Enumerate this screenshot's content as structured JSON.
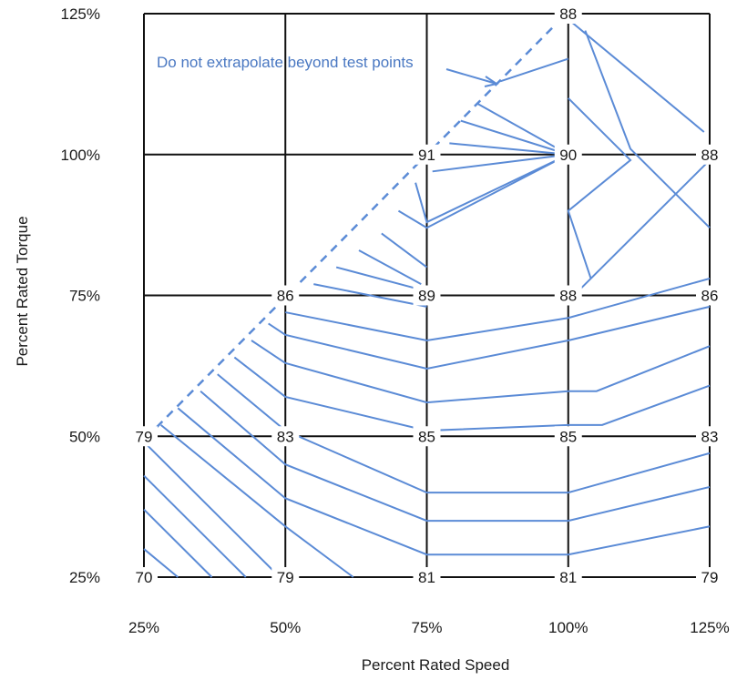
{
  "chart_data": {
    "type": "heatmap",
    "title": "",
    "xlabel": "Percent Rated Speed",
    "ylabel": "Percent Rated Torque",
    "x_ticks": [
      "25%",
      "50%",
      "75%",
      "100%",
      "125%"
    ],
    "y_ticks": [
      "125%",
      "100%",
      "75%",
      "50%",
      "25%"
    ],
    "x_values": [
      25,
      50,
      75,
      100,
      125
    ],
    "y_values": [
      25,
      50,
      75,
      100,
      125
    ],
    "xlim": [
      25,
      125
    ],
    "ylim": [
      25,
      125
    ],
    "grid": true,
    "points": [
      {
        "speed": 25,
        "torque": 25,
        "label": "70"
      },
      {
        "speed": 50,
        "torque": 25,
        "label": "79"
      },
      {
        "speed": 75,
        "torque": 25,
        "label": "81"
      },
      {
        "speed": 100,
        "torque": 25,
        "label": "81"
      },
      {
        "speed": 125,
        "torque": 25,
        "label": "79"
      },
      {
        "speed": 25,
        "torque": 50,
        "label": "79"
      },
      {
        "speed": 50,
        "torque": 50,
        "label": "83"
      },
      {
        "speed": 75,
        "torque": 50,
        "label": "85"
      },
      {
        "speed": 100,
        "torque": 50,
        "label": "85"
      },
      {
        "speed": 125,
        "torque": 50,
        "label": "83"
      },
      {
        "speed": 50,
        "torque": 75,
        "label": "86"
      },
      {
        "speed": 75,
        "torque": 75,
        "label": "89"
      },
      {
        "speed": 100,
        "torque": 75,
        "label": "88"
      },
      {
        "speed": 125,
        "torque": 75,
        "label": "86"
      },
      {
        "speed": 75,
        "torque": 100,
        "label": "91"
      },
      {
        "speed": 100,
        "torque": 100,
        "label": "90"
      },
      {
        "speed": 125,
        "torque": 100,
        "label": "88"
      },
      {
        "speed": 100,
        "torque": 125,
        "label": "88"
      }
    ],
    "boundary": [
      [
        25,
        50
      ],
      [
        100,
        125
      ]
    ],
    "contours": [
      [
        [
          25,
          30
        ],
        [
          31,
          25
        ]
      ],
      [
        [
          25,
          37
        ],
        [
          37,
          25
        ]
      ],
      [
        [
          25,
          43
        ],
        [
          43,
          25
        ]
      ],
      [
        [
          25,
          49
        ],
        [
          49,
          25
        ]
      ],
      [
        [
          28,
          52
        ],
        [
          50,
          34
        ],
        [
          62,
          25
        ]
      ],
      [
        [
          31,
          55
        ],
        [
          50,
          39
        ],
        [
          75,
          29
        ],
        [
          100,
          29
        ],
        [
          125,
          34
        ]
      ],
      [
        [
          35,
          58
        ],
        [
          50,
          45
        ],
        [
          75,
          35
        ],
        [
          100,
          35
        ],
        [
          125,
          41
        ]
      ],
      [
        [
          38,
          61
        ],
        [
          50,
          51
        ],
        [
          75,
          40
        ],
        [
          100,
          40
        ],
        [
          125,
          47
        ]
      ],
      [
        [
          41,
          64
        ],
        [
          50,
          57
        ],
        [
          75,
          51
        ],
        [
          100,
          52
        ],
        [
          106,
          52
        ],
        [
          125,
          59
        ]
      ],
      [
        [
          44,
          67
        ],
        [
          50,
          63
        ],
        [
          75,
          56
        ],
        [
          100,
          58
        ],
        [
          105,
          58
        ],
        [
          125,
          66
        ]
      ],
      [
        [
          47,
          70
        ],
        [
          50,
          68
        ],
        [
          75,
          62
        ],
        [
          100,
          67
        ],
        [
          125,
          73
        ]
      ],
      [
        [
          50,
          72
        ],
        [
          75,
          67
        ],
        [
          100,
          71
        ],
        [
          125,
          78
        ]
      ],
      [
        [
          55,
          77
        ],
        [
          75,
          73
        ]
      ],
      [
        [
          59,
          80
        ],
        [
          74,
          76
        ]
      ],
      [
        [
          63,
          83
        ],
        [
          74,
          77
        ]
      ],
      [
        [
          67,
          86
        ],
        [
          75,
          80
        ]
      ],
      [
        [
          70,
          90
        ],
        [
          75,
          87
        ],
        [
          100,
          100
        ]
      ],
      [
        [
          73,
          95
        ],
        [
          75,
          88
        ],
        [
          100,
          100
        ]
      ],
      [
        [
          76,
          97
        ],
        [
          100,
          100
        ]
      ],
      [
        [
          79,
          102
        ],
        [
          100,
          100
        ]
      ],
      [
        [
          81,
          106
        ],
        [
          100,
          100
        ]
      ],
      [
        [
          84,
          109
        ],
        [
          100,
          100
        ]
      ],
      [
        [
          88,
          113
        ],
        [
          100,
          117
        ]
      ],
      [
        [
          100,
          110
        ],
        [
          111,
          99
        ],
        [
          100,
          90
        ],
        [
          104,
          78
        ]
      ],
      [
        [
          103,
          122
        ],
        [
          111,
          101
        ],
        [
          125,
          87
        ]
      ],
      [
        [
          100,
          124
        ],
        [
          124,
          104
        ]
      ],
      [
        [
          101,
          75
        ],
        [
          125,
          99
        ]
      ]
    ],
    "annotation": "Do not extrapolate beyond test points",
    "colors": {
      "contour": "#5b8bd6",
      "grid": "#111111",
      "annotation": "#4a78c2"
    }
  }
}
